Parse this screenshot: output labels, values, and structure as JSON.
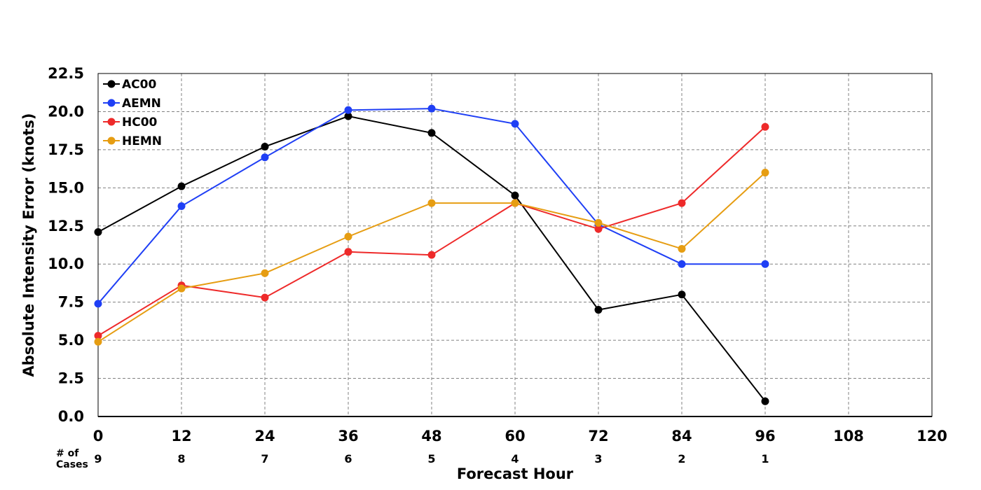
{
  "chart_data": {
    "type": "line",
    "title": "",
    "xlabel": "Forecast Hour",
    "ylabel": "Absolute Intensity Error (knots)",
    "xlim": [
      0,
      120
    ],
    "ylim": [
      0,
      22.5
    ],
    "x_ticks": [
      0,
      12,
      24,
      36,
      48,
      60,
      72,
      84,
      96,
      108,
      120
    ],
    "y_ticks": [
      0.0,
      2.5,
      5.0,
      7.5,
      10.0,
      12.5,
      15.0,
      17.5,
      20.0,
      22.5
    ],
    "y_tick_labels": [
      "0.0",
      "2.5",
      "5.0",
      "7.5",
      "10.0",
      "12.5",
      "15.0",
      "17.5",
      "20.0",
      "22.5"
    ],
    "grid": true,
    "legend_position": "top-left",
    "cases": {
      "label_line1": "# of",
      "label_line2": "Cases",
      "x": [
        0,
        12,
        24,
        36,
        48,
        60,
        72,
        84,
        96
      ],
      "counts": [
        9,
        8,
        7,
        6,
        5,
        4,
        3,
        2,
        1
      ]
    },
    "x": [
      0,
      12,
      24,
      36,
      48,
      60,
      72,
      84,
      96
    ],
    "series": [
      {
        "name": "AC00",
        "color": "#000000",
        "values": [
          12.1,
          15.1,
          17.7,
          19.7,
          18.6,
          14.5,
          7.0,
          8.0,
          1.0
        ]
      },
      {
        "name": "AEMN",
        "color": "#1f3ff5",
        "values": [
          7.4,
          13.8,
          17.0,
          20.1,
          20.2,
          19.2,
          12.6,
          10.0,
          10.0
        ]
      },
      {
        "name": "HC00",
        "color": "#ee2a2a",
        "values": [
          5.3,
          8.6,
          7.8,
          10.8,
          10.6,
          14.0,
          12.3,
          14.0,
          19.0
        ]
      },
      {
        "name": "HEMN",
        "color": "#e69d12",
        "values": [
          4.9,
          8.4,
          9.4,
          11.8,
          14.0,
          14.0,
          12.7,
          11.0,
          16.0
        ]
      }
    ]
  }
}
